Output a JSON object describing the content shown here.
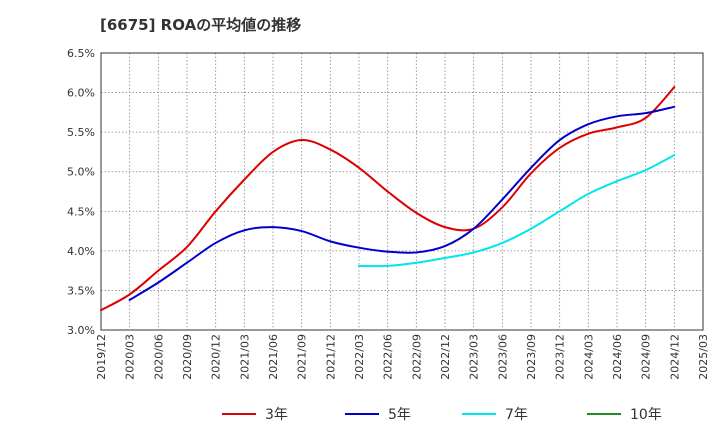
{
  "chart_data": {
    "type": "line",
    "title": "[6675]  ROAの平均値の推移",
    "xlabel": "",
    "ylabel": "",
    "ylim": [
      3.0,
      6.5
    ],
    "y_ticks": [
      "3.0%",
      "3.5%",
      "4.0%",
      "4.5%",
      "5.0%",
      "5.5%",
      "6.0%",
      "6.5%"
    ],
    "x_ticks": [
      "2019/12",
      "2020/03",
      "2020/06",
      "2020/09",
      "2020/12",
      "2021/03",
      "2021/06",
      "2021/09",
      "2021/12",
      "2022/03",
      "2022/06",
      "2022/09",
      "2022/12",
      "2023/03",
      "2023/06",
      "2023/09",
      "2023/12",
      "2024/03",
      "2024/06",
      "2024/09",
      "2024/12",
      "2025/03"
    ],
    "grid": true,
    "legend_position": "bottom",
    "series": [
      {
        "name": "3年",
        "color": "#dd0000",
        "points": [
          [
            "2019/12",
            3.25
          ],
          [
            "2020/03",
            3.45
          ],
          [
            "2020/06",
            3.75
          ],
          [
            "2020/09",
            4.05
          ],
          [
            "2020/12",
            4.5
          ],
          [
            "2021/03",
            4.9
          ],
          [
            "2021/06",
            5.25
          ],
          [
            "2021/09",
            5.4
          ],
          [
            "2021/12",
            5.28
          ],
          [
            "2022/03",
            5.05
          ],
          [
            "2022/06",
            4.75
          ],
          [
            "2022/09",
            4.48
          ],
          [
            "2022/12",
            4.3
          ],
          [
            "2023/03",
            4.28
          ],
          [
            "2023/06",
            4.55
          ],
          [
            "2023/09",
            4.98
          ],
          [
            "2023/12",
            5.3
          ],
          [
            "2024/03",
            5.48
          ],
          [
            "2024/06",
            5.56
          ],
          [
            "2024/09",
            5.68
          ],
          [
            "2024/12",
            6.07
          ]
        ]
      },
      {
        "name": "5年",
        "color": "#0000cc",
        "points": [
          [
            "2020/03",
            3.38
          ],
          [
            "2020/06",
            3.6
          ],
          [
            "2020/09",
            3.85
          ],
          [
            "2020/12",
            4.1
          ],
          [
            "2021/03",
            4.26
          ],
          [
            "2021/06",
            4.3
          ],
          [
            "2021/09",
            4.25
          ],
          [
            "2021/12",
            4.12
          ],
          [
            "2022/03",
            4.04
          ],
          [
            "2022/06",
            3.99
          ],
          [
            "2022/09",
            3.98
          ],
          [
            "2022/12",
            4.06
          ],
          [
            "2023/03",
            4.28
          ],
          [
            "2023/06",
            4.65
          ],
          [
            "2023/09",
            5.05
          ],
          [
            "2023/12",
            5.4
          ],
          [
            "2024/03",
            5.6
          ],
          [
            "2024/06",
            5.7
          ],
          [
            "2024/09",
            5.74
          ],
          [
            "2024/12",
            5.82
          ]
        ]
      },
      {
        "name": "7年",
        "color": "#00e5ee",
        "points": [
          [
            "2022/03",
            3.81
          ],
          [
            "2022/06",
            3.81
          ],
          [
            "2022/09",
            3.85
          ],
          [
            "2022/12",
            3.91
          ],
          [
            "2023/03",
            3.98
          ],
          [
            "2023/06",
            4.1
          ],
          [
            "2023/09",
            4.28
          ],
          [
            "2023/12",
            4.5
          ],
          [
            "2024/03",
            4.72
          ],
          [
            "2024/06",
            4.88
          ],
          [
            "2024/09",
            5.02
          ],
          [
            "2024/12",
            5.21
          ]
        ]
      },
      {
        "name": "10年",
        "color": "#228b22",
        "points": []
      }
    ]
  }
}
